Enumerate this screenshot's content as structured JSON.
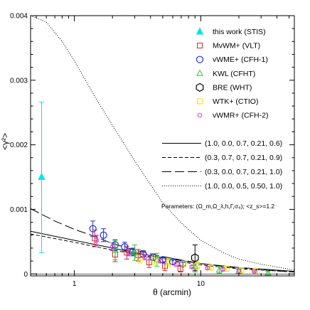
{
  "chart_data": {
    "type": "scatter",
    "xlabel": "θ (arcmin)",
    "ylabel": "<γ²>",
    "xscale": "log",
    "xlim": [
      0.45,
      55
    ],
    "ylim": [
      -3e-05,
      0.004
    ],
    "x_tick_labels": [
      "1",
      "10"
    ],
    "x_tick_values": [
      1,
      10
    ],
    "y_tick_labels": [
      "0",
      "0.001",
      "0.002",
      "0.003",
      "0.004"
    ],
    "y_tick_values": [
      0,
      0.001,
      0.002,
      0.003,
      0.004
    ],
    "legend_position": "top-right",
    "series": [
      {
        "name": "this work (STIS)",
        "marker": "filled-triangle",
        "color": "#00e5ee",
        "points": [
          {
            "x": 0.55,
            "y": 0.0015,
            "err_lo": 0.00117,
            "err_hi": 0.00116
          }
        ]
      },
      {
        "name": "MvWM+ (VLT)",
        "marker": "square",
        "color": "#d22b2b",
        "points": [
          {
            "x": 1.45,
            "y": 0.00055,
            "err_lo": 0.00013,
            "err_hi": 0.00013
          },
          {
            "x": 2.1,
            "y": 0.0003,
            "err_lo": 0.00011,
            "err_hi": 0.00011
          },
          {
            "x": 2.6,
            "y": 0.00033,
            "err_lo": 0.0001,
            "err_hi": 0.0001
          },
          {
            "x": 3.2,
            "y": 0.00029,
            "err_lo": 9e-05,
            "err_hi": 9e-05
          },
          {
            "x": 3.9,
            "y": 0.00018,
            "err_lo": 8e-05,
            "err_hi": 8e-05
          },
          {
            "x": 5.2,
            "y": 0.00012,
            "err_lo": 7e-05,
            "err_hi": 7e-05
          },
          {
            "x": 6.9,
            "y": 8e-05,
            "err_lo": 5e-05,
            "err_hi": 5e-05
          }
        ]
      },
      {
        "name": "vWME+ (CFH-1)",
        "marker": "circle",
        "color": "#1f2fd6",
        "points": [
          {
            "x": 1.4,
            "y": 0.0007,
            "err_lo": 0.00012,
            "err_hi": 0.00012
          },
          {
            "x": 1.7,
            "y": 0.0006,
            "err_lo": 0.0001,
            "err_hi": 0.0001
          },
          {
            "x": 2.1,
            "y": 0.00045,
            "err_lo": 8e-05,
            "err_hi": 8e-05
          },
          {
            "x": 2.5,
            "y": 0.00042,
            "err_lo": 7e-05,
            "err_hi": 7e-05
          },
          {
            "x": 2.9,
            "y": 0.00034,
            "err_lo": 6e-05,
            "err_hi": 6e-05
          },
          {
            "x": 3.5,
            "y": 0.00031,
            "err_lo": 5e-05,
            "err_hi": 5e-05
          },
          {
            "x": 4.2,
            "y": 0.00026,
            "err_lo": 5e-05,
            "err_hi": 5e-05
          },
          {
            "x": 5.0,
            "y": 0.00022,
            "err_lo": 4e-05,
            "err_hi": 4e-05
          },
          {
            "x": 6.0,
            "y": 0.00019,
            "err_lo": 4e-05,
            "err_hi": 4e-05
          },
          {
            "x": 7.2,
            "y": 0.00016,
            "err_lo": 4e-05,
            "err_hi": 4e-05
          }
        ]
      },
      {
        "name": "KWL (CFHT)",
        "marker": "triangle",
        "color": "#2bc62b",
        "points": [
          {
            "x": 2.1,
            "y": 0.00037,
            "err_lo": 0.00015,
            "err_hi": 0.00015
          },
          {
            "x": 3.0,
            "y": 0.00033,
            "err_lo": 0.00012,
            "err_hi": 0.00012
          },
          {
            "x": 4.5,
            "y": 0.00022,
            "err_lo": 0.0001,
            "err_hi": 0.0001
          },
          {
            "x": 9.0,
            "y": 0.00011,
            "err_lo": 8e-05,
            "err_hi": 8e-05
          },
          {
            "x": 14,
            "y": 6e-05,
            "err_lo": 5e-05,
            "err_hi": 5e-05
          },
          {
            "x": 20,
            "y": 4e-05,
            "err_lo": 4e-05,
            "err_hi": 4e-05
          },
          {
            "x": 34,
            "y": 1e-05,
            "err_lo": 3e-05,
            "err_hi": 3e-05
          }
        ]
      },
      {
        "name": "BRE (WHT)",
        "marker": "hexagon",
        "color": "#000000",
        "points": [
          {
            "x": 9.0,
            "y": 0.00025,
            "err_lo": 0.0002,
            "err_hi": 0.0002
          }
        ]
      },
      {
        "name": "WTK+ (CTIO)",
        "marker": "square",
        "color": "#f2e21a",
        "points": [
          {
            "x": 3.3,
            "y": 0.00025,
            "err_lo": 8e-05,
            "err_hi": 8e-05
          },
          {
            "x": 4.3,
            "y": 0.00022,
            "err_lo": 7e-05,
            "err_hi": 7e-05
          },
          {
            "x": 5.6,
            "y": 0.00018,
            "err_lo": 6e-05,
            "err_hi": 6e-05
          },
          {
            "x": 7.3,
            "y": 0.00016,
            "err_lo": 5e-05,
            "err_hi": 5e-05
          },
          {
            "x": 9.4,
            "y": 0.00013,
            "err_lo": 5e-05,
            "err_hi": 5e-05
          },
          {
            "x": 12,
            "y": 0.0001,
            "err_lo": 4e-05,
            "err_hi": 4e-05
          },
          {
            "x": 16,
            "y": 8e-05,
            "err_lo": 4e-05,
            "err_hi": 4e-05
          },
          {
            "x": 21,
            "y": 6e-05,
            "err_lo": 3e-05,
            "err_hi": 3e-05
          },
          {
            "x": 27,
            "y": 5e-05,
            "err_lo": 3e-05,
            "err_hi": 3e-05
          }
        ]
      },
      {
        "name": "vWMR+ (CFH-2)",
        "marker": "small-circle",
        "color": "#d23ed2",
        "points": [
          {
            "x": 1.5,
            "y": 0.00052,
            "err_lo": 8e-05,
            "err_hi": 8e-05
          },
          {
            "x": 2.0,
            "y": 0.00042,
            "err_lo": 6e-05,
            "err_hi": 6e-05
          },
          {
            "x": 2.7,
            "y": 0.00033,
            "err_lo": 5e-05,
            "err_hi": 5e-05
          },
          {
            "x": 3.6,
            "y": 0.00026,
            "err_lo": 4e-05,
            "err_hi": 4e-05
          },
          {
            "x": 4.8,
            "y": 0.0002,
            "err_lo": 3e-05,
            "err_hi": 3e-05
          },
          {
            "x": 6.4,
            "y": 0.00015,
            "err_lo": 3e-05,
            "err_hi": 3e-05
          },
          {
            "x": 8.5,
            "y": 0.00011,
            "err_lo": 2e-05,
            "err_hi": 2e-05
          },
          {
            "x": 11.3,
            "y": 9e-05,
            "err_lo": 2e-05,
            "err_hi": 2e-05
          },
          {
            "x": 15,
            "y": 7e-05,
            "err_lo": 2e-05,
            "err_hi": 2e-05
          },
          {
            "x": 20,
            "y": 5e-05,
            "err_lo": 2e-05,
            "err_hi": 2e-05
          },
          {
            "x": 26.5,
            "y": 4e-05,
            "err_lo": 1e-05,
            "err_hi": 1e-05
          }
        ]
      }
    ],
    "model_curves": [
      {
        "name": "(1.0, 0.0, 0.7, 0.21, 0.6)",
        "dash": "solid",
        "points": [
          [
            0.45,
            0.00066
          ],
          [
            1,
            0.00052
          ],
          [
            2,
            0.0004
          ],
          [
            3,
            0.00033
          ],
          [
            5,
            0.00025
          ],
          [
            10,
            0.00016
          ],
          [
            20,
            0.0001
          ],
          [
            55,
            4e-05
          ]
        ]
      },
      {
        "name": "(0.3, 0.7, 0.7, 0.21, 0.9)",
        "dash": "short-dash",
        "points": [
          [
            0.45,
            0.00062
          ],
          [
            1,
            0.00049
          ],
          [
            2,
            0.00037
          ],
          [
            3,
            0.00031
          ],
          [
            5,
            0.00023
          ],
          [
            10,
            0.00014
          ],
          [
            20,
            8e-05
          ],
          [
            55,
            3e-05
          ]
        ]
      },
      {
        "name": "(0.3, 0.0, 0.7, 0.21, 1.0)",
        "dash": "long-dash",
        "points": [
          [
            0.45,
            0.00101
          ],
          [
            0.7,
            0.00082
          ],
          [
            1,
            0.00069
          ],
          [
            1.5,
            0.00057
          ],
          [
            2,
            0.00047
          ],
          [
            3,
            0.00037
          ],
          [
            5,
            0.00027
          ],
          [
            10,
            0.00016
          ],
          [
            20,
            9e-05
          ],
          [
            55,
            3e-05
          ]
        ]
      },
      {
        "name": "(1.0, 0.0, 0.5, 0.50, 1.0)",
        "dash": "dotted",
        "points": [
          [
            0.45,
            0.0041
          ],
          [
            0.6,
            0.0039
          ],
          [
            0.8,
            0.0036
          ],
          [
            1,
            0.0033
          ],
          [
            1.5,
            0.0027
          ],
          [
            2,
            0.0023
          ],
          [
            3,
            0.00175
          ],
          [
            5,
            0.0011
          ],
          [
            7,
            0.00079
          ],
          [
            10,
            0.00052
          ],
          [
            15,
            0.00033
          ],
          [
            20,
            0.00023
          ],
          [
            30,
            0.00015
          ],
          [
            55,
            6e-05
          ]
        ]
      }
    ],
    "annotation": "Parameters: (Ω_m,Ω_λ,h,Γ,σ₈);  <z_s>=1.2"
  }
}
